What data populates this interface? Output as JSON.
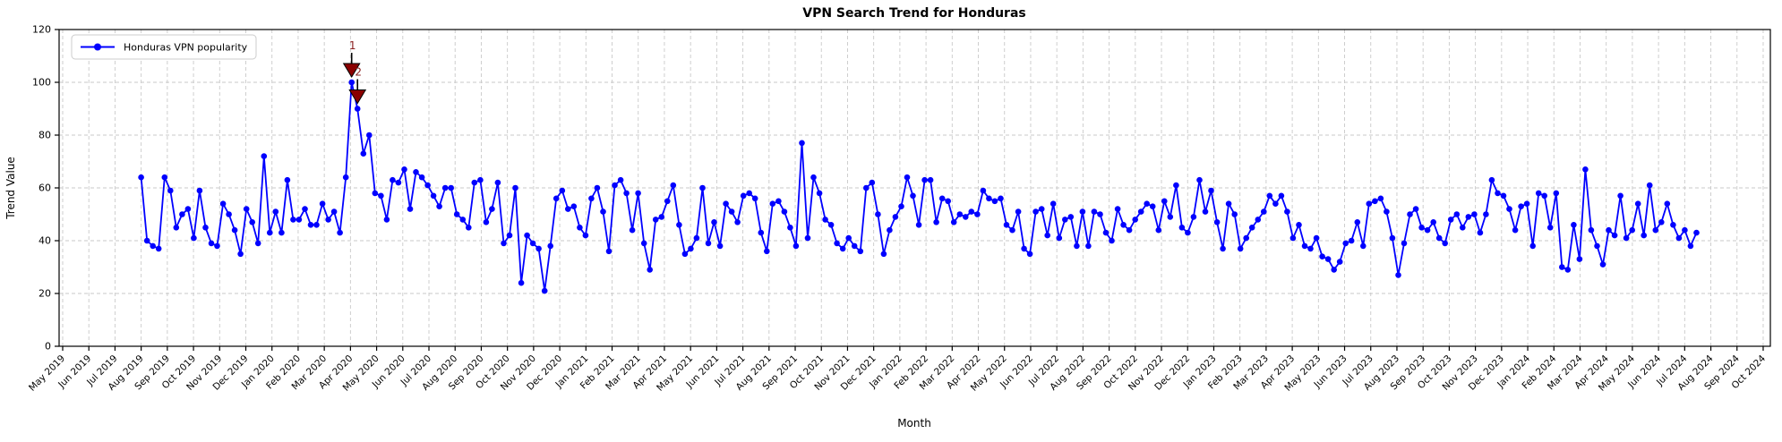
{
  "figure": {
    "title": "VPN Search Trend for Honduras",
    "xlabel": "Month",
    "ylabel": "Trend Value"
  },
  "legend": {
    "label": "Honduras VPN popularity",
    "position": "upper left"
  },
  "colors": {
    "line": "#0000ff",
    "marker": "#0000ff",
    "annotation_marker": "#8b0000",
    "annotation_text": "#8b2020",
    "connector": "#000000",
    "grid": "#c9c9c9",
    "spine": "#000000",
    "tick_text": "#000000",
    "background": "#ffffff",
    "legend_border": "#cccccc"
  },
  "chart_data": {
    "type": "line",
    "title": "VPN Search Trend for Honduras",
    "xlabel": "Month",
    "ylabel": "Trend Value",
    "ylim": [
      0,
      120
    ],
    "y_ticks": [
      0,
      20,
      40,
      60,
      80,
      100,
      120
    ],
    "grid": true,
    "legend_position": "upper left",
    "x_tick_labels": [
      "May 2019",
      "Jun 2019",
      "Jul 2019",
      "Aug 2019",
      "Sep 2019",
      "Oct 2019",
      "Nov 2019",
      "Dec 2019",
      "Jan 2020",
      "Feb 2020",
      "Mar 2020",
      "Apr 2020",
      "May 2020",
      "Jun 2020",
      "Jul 2020",
      "Aug 2020",
      "Sep 2020",
      "Oct 2020",
      "Nov 2020",
      "Dec 2020",
      "Jan 2021",
      "Feb 2021",
      "Mar 2021",
      "Apr 2021",
      "May 2021",
      "Jun 2021",
      "Jul 2021",
      "Aug 2021",
      "Sep 2021",
      "Oct 2021",
      "Nov 2021",
      "Dec 2021",
      "Jan 2022",
      "Feb 2022",
      "Mar 2022",
      "Apr 2022",
      "May 2022",
      "Jun 2022",
      "Jul 2022",
      "Aug 2022",
      "Sep 2022",
      "Oct 2022",
      "Nov 2022",
      "Dec 2022",
      "Jan 2023",
      "Feb 2023",
      "Mar 2023",
      "Apr 2023",
      "May 2023",
      "Jun 2023",
      "Jul 2023",
      "Aug 2023",
      "Sep 2023",
      "Oct 2023",
      "Nov 2023",
      "Dec 2023",
      "Jan 2024",
      "Feb 2024",
      "Mar 2024",
      "Apr 2024",
      "May 2024",
      "Jun 2024",
      "Jul 2024",
      "Aug 2024",
      "Sep 2024",
      "Oct 2024"
    ],
    "data_start_label": "Aug 2019",
    "data_end_label": "Jul 2024",
    "frequency": "weekly",
    "series": [
      {
        "name": "Honduras VPN popularity",
        "color": "#0000ff",
        "marker": "circle",
        "values": [
          64,
          40,
          38,
          37,
          64,
          59,
          45,
          50,
          52,
          41,
          59,
          45,
          39,
          38,
          54,
          50,
          44,
          35,
          52,
          47,
          39,
          72,
          43,
          51,
          43,
          63,
          48,
          48,
          52,
          46,
          46,
          54,
          48,
          51,
          43,
          64,
          100,
          90,
          73,
          80,
          58,
          57,
          48,
          63,
          62,
          67,
          52,
          66,
          64,
          61,
          57,
          53,
          60,
          60,
          50,
          48,
          45,
          62,
          63,
          47,
          52,
          62,
          39,
          42,
          60,
          24,
          42,
          39,
          37,
          21,
          38,
          56,
          59,
          52,
          53,
          45,
          42,
          56,
          60,
          51,
          36,
          61,
          63,
          58,
          44,
          58,
          39,
          29,
          48,
          49,
          55,
          61,
          46,
          35,
          37,
          41,
          60,
          39,
          47,
          38,
          54,
          51,
          47,
          57,
          58,
          56,
          43,
          36,
          54,
          55,
          51,
          45,
          38,
          77,
          41,
          64,
          58,
          48,
          46,
          39,
          37,
          41,
          38,
          36,
          60,
          62,
          50,
          35,
          44,
          49,
          53,
          64,
          57,
          46,
          63,
          63,
          47,
          56,
          55,
          47,
          50,
          49,
          51,
          50,
          59,
          56,
          55,
          56,
          46,
          44,
          51,
          37,
          35,
          51,
          52,
          42,
          54,
          41,
          48,
          49,
          38,
          51,
          38,
          51,
          50,
          43,
          40,
          52,
          46,
          44,
          48,
          51,
          54,
          53,
          44,
          55,
          49,
          61,
          45,
          43,
          49,
          63,
          51,
          59,
          47,
          37,
          54,
          50,
          37,
          41,
          45,
          48,
          51,
          57,
          54,
          57,
          51,
          41,
          46,
          38,
          37,
          41,
          34,
          33,
          29,
          32,
          39,
          40,
          47,
          38,
          54,
          55,
          56,
          51,
          41,
          27,
          39,
          50,
          52,
          45,
          44,
          47,
          41,
          39,
          48,
          50,
          45,
          49,
          50,
          43,
          50,
          63,
          58,
          57,
          52,
          44,
          53,
          54,
          38,
          58,
          57,
          45,
          58,
          30,
          29,
          46,
          33,
          67,
          44,
          38,
          31,
          44,
          42,
          57,
          41,
          44,
          54,
          42,
          61,
          44,
          47,
          54,
          46,
          41,
          44,
          38,
          43
        ]
      }
    ],
    "annotations": [
      {
        "label": "1",
        "point_index": 36,
        "value": 100
      },
      {
        "label": "2",
        "point_index": 37,
        "value": 90
      }
    ]
  }
}
